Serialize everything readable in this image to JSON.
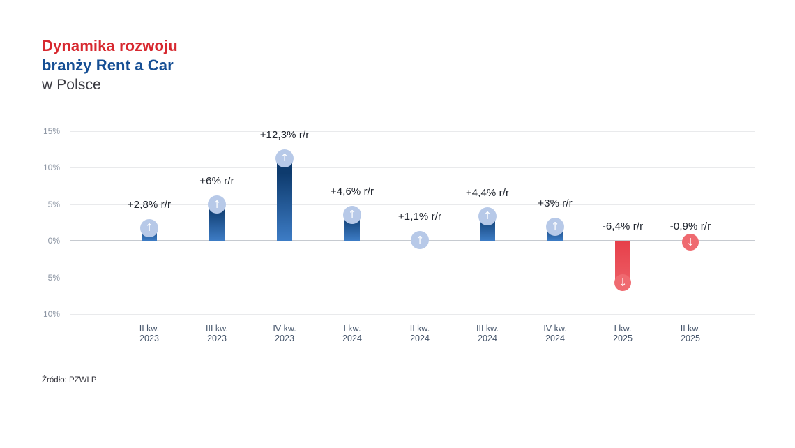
{
  "title": {
    "line1": "Dynamika rozwoju",
    "line2": "branży Rent a Car",
    "line3": "w Polsce"
  },
  "source": "Źródło: PZWLP",
  "chart_data": {
    "type": "bar",
    "title": "Dynamika rozwoju branży Rent a Car w Polsce",
    "xlabel": "",
    "ylabel": "",
    "unit": "% r/r",
    "grid": true,
    "legend_position": "none",
    "ylim": [
      -10,
      15
    ],
    "y_ticks": [
      {
        "value": 15,
        "label": "15%"
      },
      {
        "value": 10,
        "label": "10%"
      },
      {
        "value": 5,
        "label": "5%"
      },
      {
        "value": 0,
        "label": "0%"
      },
      {
        "value": -5,
        "label": "5%"
      },
      {
        "value": -10,
        "label": "10%"
      }
    ],
    "categories": [
      {
        "quarter": "II kw.",
        "year": "2023"
      },
      {
        "quarter": "III kw.",
        "year": "2023"
      },
      {
        "quarter": "IV kw.",
        "year": "2023"
      },
      {
        "quarter": "I kw.",
        "year": "2024"
      },
      {
        "quarter": "II kw.",
        "year": "2024"
      },
      {
        "quarter": "III kw.",
        "year": "2024"
      },
      {
        "quarter": "IV kw.",
        "year": "2024"
      },
      {
        "quarter": "I kw.",
        "year": "2025"
      },
      {
        "quarter": "II kw.",
        "year": "2025"
      }
    ],
    "values": [
      2.8,
      6,
      12.3,
      4.6,
      1.1,
      4.4,
      3,
      -6.4,
      -0.9
    ],
    "value_labels": [
      "+2,8% r/r",
      "+6% r/r",
      "+12,3% r/r",
      "+4,6% r/r",
      "+1,1% r/r",
      "+4,4% r/r",
      "+3% r/r",
      "-6,4% r/r",
      "-0,9% r/r"
    ],
    "icons": [
      "arrow-up-icon",
      "arrow-up-icon",
      "arrow-up-icon",
      "arrow-up-icon",
      "arrow-up-icon",
      "arrow-up-icon",
      "arrow-up-icon",
      "arrow-down-icon",
      "arrow-down-icon"
    ],
    "colors": {
      "bar_positive_top": "#0e3b6e",
      "bar_positive_bottom": "#3d7cc5",
      "icon_positive": "#b7c9e8",
      "bar_negative_top": "#e63f4a",
      "bar_negative_bottom": "#ed5f66",
      "icon_negative": "#ef6a70",
      "title_accent_red": "#d7282f",
      "title_accent_navy": "#154e94",
      "gridline": "#e9eaec",
      "zero_line": "#c6cad0",
      "y_tick_text": "#8d96a4",
      "x_tick_text": "#44546a",
      "value_label_text": "#20252e"
    }
  }
}
